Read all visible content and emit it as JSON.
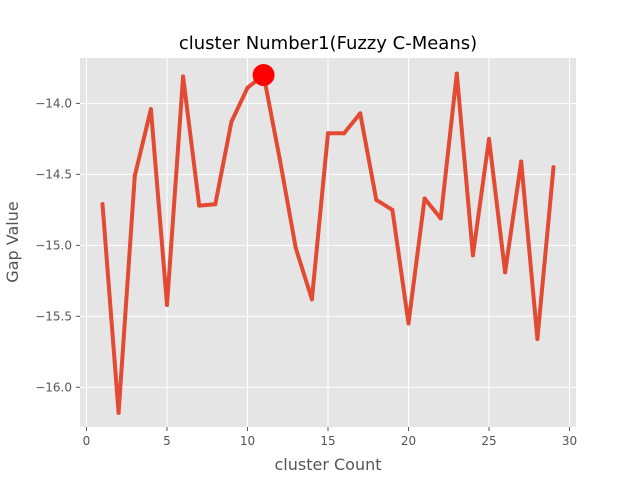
{
  "chart_data": {
    "type": "line",
    "title": "cluster Number1(Fuzzy C-Means)",
    "xlabel": "cluster Count",
    "ylabel": "Gap Value",
    "xlim": [
      -0.4,
      30.4
    ],
    "ylim": [
      -16.28,
      -13.68
    ],
    "grid": true,
    "xticks": [
      0,
      5,
      10,
      15,
      20,
      25,
      30
    ],
    "yticks": [
      -14.0,
      -14.5,
      -15.0,
      -15.5,
      -16.0
    ],
    "xtick_labels": [
      "0",
      "5",
      "10",
      "15",
      "20",
      "25",
      "30"
    ],
    "ytick_labels": [
      "−14.0",
      "−14.5",
      "−15.0",
      "−15.5",
      "−16.0"
    ],
    "series": [
      {
        "color": "#E24A33",
        "x": [
          1,
          2,
          3,
          4,
          5,
          6,
          7,
          8,
          9,
          10,
          11,
          12,
          13,
          14,
          15,
          16,
          17,
          18,
          19,
          20,
          21,
          22,
          23,
          24,
          25,
          26,
          27,
          28,
          29
        ],
        "y": [
          -14.71,
          -16.18,
          -14.51,
          -14.04,
          -15.42,
          -13.81,
          -14.72,
          -14.71,
          -14.13,
          -13.89,
          -13.8,
          -14.39,
          -15.02,
          -15.38,
          -14.21,
          -14.21,
          -14.07,
          -14.68,
          -14.75,
          -15.55,
          -14.67,
          -14.81,
          -13.79,
          -15.07,
          -14.25,
          -15.19,
          -14.41,
          -15.66,
          -14.45
        ]
      }
    ],
    "highlight": {
      "x": 11,
      "y": -13.8,
      "color": "#FF0000"
    }
  }
}
